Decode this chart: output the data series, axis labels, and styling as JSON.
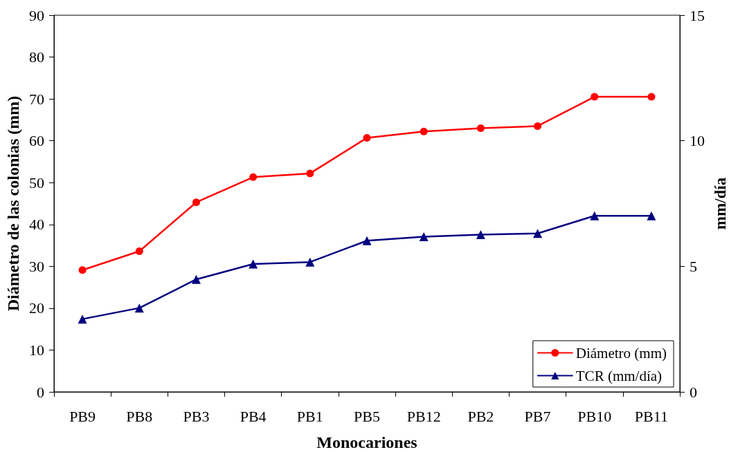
{
  "chart_data": {
    "type": "line",
    "xlabel": "Monocariones",
    "ylabel": "Diámetro de las colonias (mm)",
    "y2label": "mm/día",
    "categories": [
      "PB9",
      "PB8",
      "PB3",
      "PB4",
      "PB1",
      "PB5",
      "PB12",
      "PB2",
      "PB7",
      "PB10",
      "PB11"
    ],
    "series": [
      {
        "name": "Diámetro (mm)",
        "color": "#ff0000",
        "marker": "circle",
        "values": [
          29.1,
          33.6,
          45.3,
          51.3,
          52.2,
          60.7,
          62.2,
          63.0,
          63.5,
          70.5,
          70.5
        ]
      },
      {
        "name": "TCR (mm/día)",
        "color": "#000080",
        "marker": "triangle",
        "axis": "y2",
        "values": [
          2.9,
          3.34,
          4.48,
          5.09,
          5.17,
          6.02,
          6.18,
          6.26,
          6.31,
          7.01,
          7.01
        ]
      }
    ],
    "ylim": [
      0,
      90
    ],
    "yticks": [
      0,
      10,
      20,
      30,
      40,
      50,
      60,
      70,
      80,
      90
    ],
    "y2lim": [
      0,
      15
    ],
    "y2ticks": [
      0,
      5,
      10,
      15
    ],
    "legend": "bottom right"
  }
}
